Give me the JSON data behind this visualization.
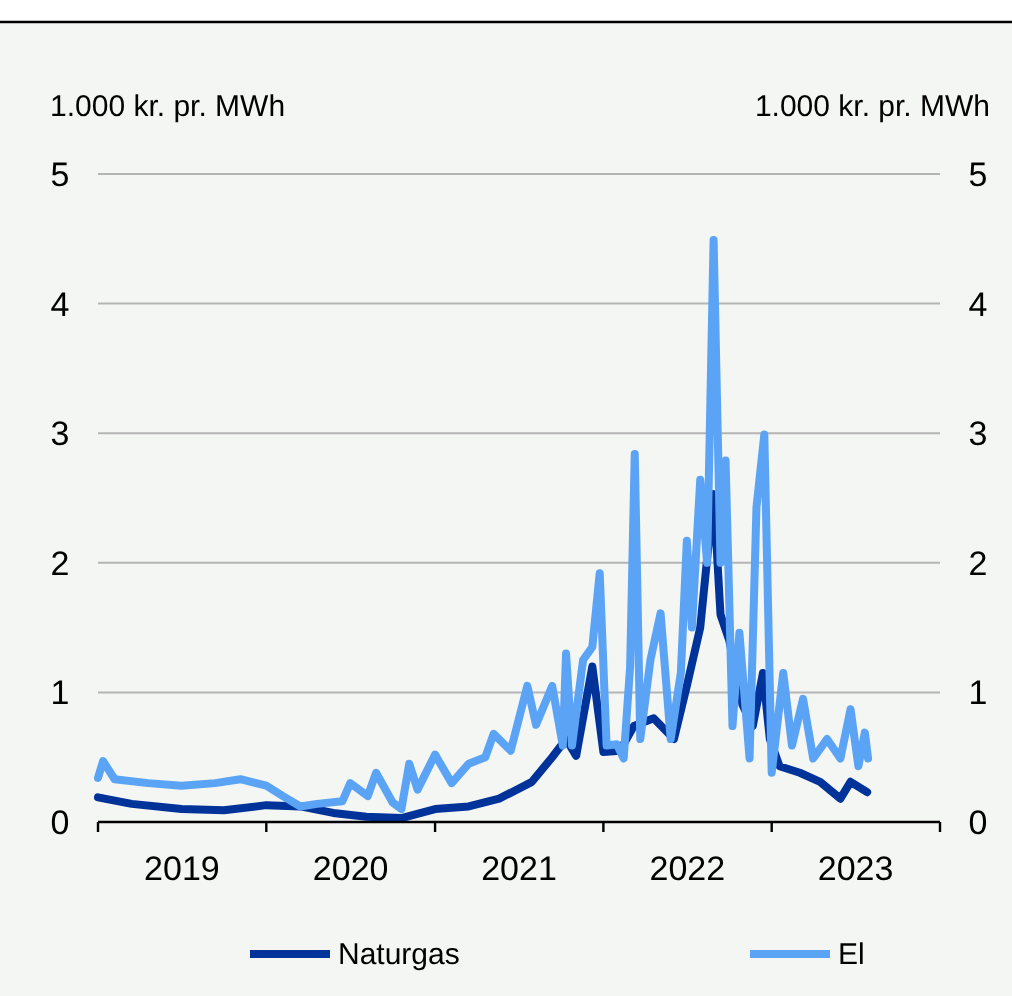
{
  "chart_data": {
    "type": "line",
    "ylabel": "1.000 kr. pr. MWh",
    "y2label": "1.000 kr. pr. MWh",
    "xlim": [
      "2019-01-01",
      "2024-01-01"
    ],
    "xticks": [
      {
        "value": "2019-01-01",
        "label": null
      },
      {
        "value": "2019-07-02",
        "label": "2019"
      },
      {
        "value": "2020-01-01",
        "label": null
      },
      {
        "value": "2020-07-02",
        "label": "2020"
      },
      {
        "value": "2021-01-01",
        "label": null
      },
      {
        "value": "2021-07-02",
        "label": "2021"
      },
      {
        "value": "2022-01-01",
        "label": null
      },
      {
        "value": "2022-07-02",
        "label": "2022"
      },
      {
        "value": "2023-01-01",
        "label": null
      },
      {
        "value": "2023-07-02",
        "label": "2023"
      },
      {
        "value": "2024-01-01",
        "label": null
      }
    ],
    "ylim": [
      0,
      5
    ],
    "yticks": [
      0,
      1,
      2,
      3,
      4,
      5
    ],
    "y2lim": [
      0,
      5
    ],
    "y2ticks": [
      0,
      1,
      2,
      3,
      4,
      5
    ],
    "grid": "y",
    "legend": "bottom",
    "marker": "none",
    "line_style": "solid",
    "series": [
      {
        "name": "Naturgas",
        "color": "#00339a",
        "x": [
          "2019-01-01",
          "2019-03-15",
          "2019-07-01",
          "2019-10-01",
          "2020-01-01",
          "2020-03-15",
          "2020-05-25",
          "2020-08-05",
          "2020-10-20",
          "2021-01-01",
          "2021-03-15",
          "2021-05-20",
          "2021-07-30",
          "2021-09-12",
          "2021-10-12",
          "2021-11-03",
          "2021-12-08",
          "2022-01-01",
          "2022-02-06",
          "2022-03-08",
          "2022-04-20",
          "2022-06-03",
          "2022-07-01",
          "2022-07-30",
          "2022-08-28",
          "2022-09-12",
          "2022-10-01",
          "2022-10-30",
          "2022-11-21",
          "2022-12-13",
          "2022-12-28",
          "2023-01-18",
          "2023-03-03",
          "2023-04-16",
          "2023-05-30",
          "2023-06-21",
          "2023-07-27"
        ],
        "values": [
          0.19,
          0.14,
          0.1,
          0.09,
          0.13,
          0.12,
          0.07,
          0.04,
          0.03,
          0.1,
          0.12,
          0.18,
          0.31,
          0.5,
          0.64,
          0.51,
          1.2,
          0.54,
          0.55,
          0.74,
          0.8,
          0.64,
          1.05,
          1.5,
          2.53,
          1.6,
          1.4,
          0.9,
          0.74,
          1.15,
          0.64,
          0.43,
          0.38,
          0.31,
          0.18,
          0.31,
          0.23
        ]
      },
      {
        "name": "El",
        "color": "#5ba3f5",
        "x": [
          "2019-01-01",
          "2019-01-12",
          "2019-02-06",
          "2019-04-20",
          "2019-07-01",
          "2019-09-12",
          "2019-11-06",
          "2020-01-01",
          "2020-02-06",
          "2020-03-15",
          "2020-04-20",
          "2020-06-14",
          "2020-07-01",
          "2020-08-08",
          "2020-08-26",
          "2020-10-01",
          "2020-10-20",
          "2020-11-06",
          "2020-11-24",
          "2021-01-01",
          "2021-02-06",
          "2021-03-15",
          "2021-04-20",
          "2021-05-08",
          "2021-06-14",
          "2021-07-20",
          "2021-08-08",
          "2021-09-12",
          "2021-10-05",
          "2021-10-12",
          "2021-10-25",
          "2021-11-18",
          "2021-12-08",
          "2021-12-24",
          "2022-01-08",
          "2022-01-30",
          "2022-02-14",
          "2022-02-28",
          "2022-03-10",
          "2022-03-22",
          "2022-04-13",
          "2022-05-05",
          "2022-05-27",
          "2022-06-18",
          "2022-07-01",
          "2022-07-12",
          "2022-07-30",
          "2022-08-14",
          "2022-08-28",
          "2022-09-12",
          "2022-09-23",
          "2022-10-08",
          "2022-10-23",
          "2022-11-14",
          "2022-11-29",
          "2022-12-16",
          "2023-01-01",
          "2023-01-26",
          "2023-02-14",
          "2023-03-10",
          "2023-04-01",
          "2023-05-01",
          "2023-05-30",
          "2023-06-21",
          "2023-07-08",
          "2023-07-22",
          "2023-07-29"
        ],
        "values": [
          0.34,
          0.47,
          0.33,
          0.3,
          0.28,
          0.3,
          0.33,
          0.28,
          0.2,
          0.12,
          0.14,
          0.16,
          0.3,
          0.2,
          0.38,
          0.15,
          0.1,
          0.45,
          0.25,
          0.52,
          0.3,
          0.45,
          0.5,
          0.68,
          0.55,
          1.05,
          0.75,
          1.05,
          0.59,
          1.3,
          0.59,
          1.25,
          1.35,
          1.92,
          0.59,
          0.6,
          0.49,
          1.2,
          2.84,
          0.64,
          1.25,
          1.61,
          0.64,
          1.15,
          2.17,
          1.5,
          2.64,
          2.0,
          4.49,
          2.0,
          2.79,
          0.74,
          1.46,
          0.49,
          2.43,
          2.99,
          0.38,
          1.15,
          0.59,
          0.95,
          0.49,
          0.64,
          0.49,
          0.87,
          0.43,
          0.69,
          0.49
        ]
      }
    ]
  }
}
